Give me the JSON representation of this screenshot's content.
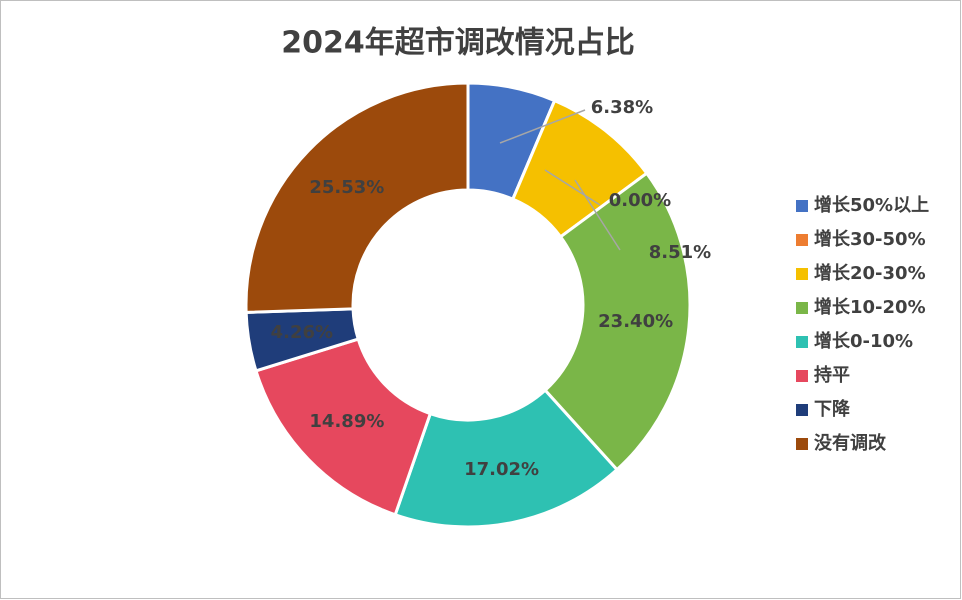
{
  "chart_data": {
    "type": "donut",
    "title": "2024年超市调改情况占比",
    "categories": [
      "增长50%以上",
      "增长30-50%",
      "增长20-30%",
      "增长10-20%",
      "增长0-10%",
      "持平",
      "下降",
      "没有调改"
    ],
    "values": [
      6.38,
      0.0,
      8.51,
      23.4,
      17.02,
      14.89,
      4.26,
      25.53
    ],
    "value_labels": [
      "6.38%",
      "0.00%",
      "8.51%",
      "23.40%",
      "17.02%",
      "14.89%",
      "4.26%",
      "25.53%"
    ],
    "colors": [
      "#4472c4",
      "#ed7d31",
      "#f5c000",
      "#7ab648",
      "#2ec1b2",
      "#e6485e",
      "#1f3d7a",
      "#9c4a0c"
    ],
    "legend": "right"
  }
}
